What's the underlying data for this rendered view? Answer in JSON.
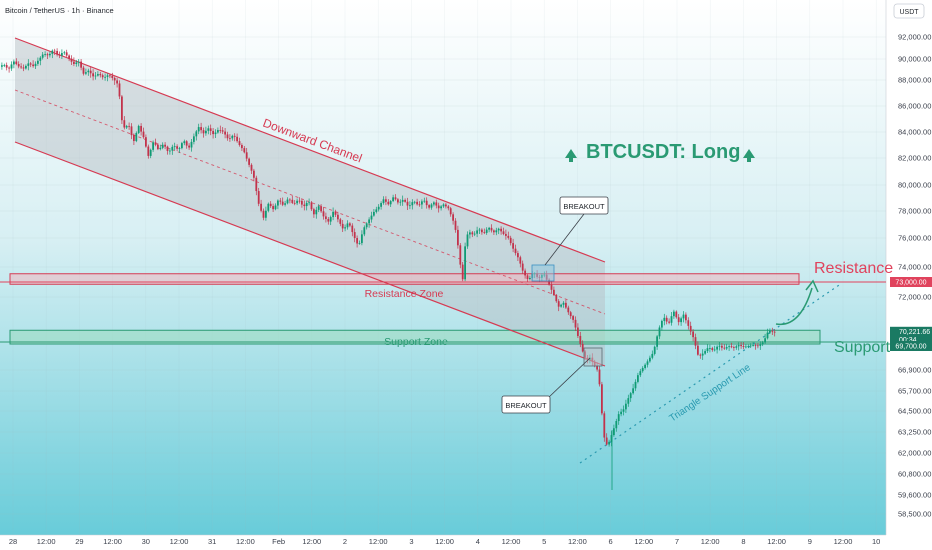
{
  "chart_data": {
    "type": "candlestick",
    "title": "Bitcoin / TetherUS · 1h · Binance",
    "currency": "USDT",
    "headline": "BTCUSDT: Long",
    "y_ticks": [
      58500,
      59600,
      60800,
      62000,
      63250,
      64500,
      65700,
      66900,
      69700,
      72000,
      74000,
      76000,
      78000,
      80000,
      82000,
      84000,
      86000,
      88000,
      90000,
      92000
    ],
    "y_tick_labels": [
      "58,500.00",
      "59,600.00",
      "60,800.00",
      "62,000.00",
      "63,250.00",
      "64,500.00",
      "65,700.00",
      "66,900.00",
      "69,700.00",
      "72,000.00",
      "74,000.00",
      "76,000.00",
      "78,000.00",
      "80,000.00",
      "82,000.00",
      "84,000.00",
      "86,000.00",
      "88,000.00",
      "90,000.00",
      "92,000.00"
    ],
    "x_tick_labels": [
      "28",
      "12:00",
      "29",
      "12:00",
      "30",
      "12:00",
      "31",
      "12:00",
      "Feb",
      "12:00",
      "2",
      "12:00",
      "3",
      "12:00",
      "4",
      "12:00",
      "5",
      "12:00",
      "6",
      "12:00",
      "7",
      "12:00",
      "8",
      "12:00",
      "9",
      "12:00",
      "10"
    ],
    "price_markers": {
      "resistance_value": "73,000.00",
      "current_value": "70,221.66",
      "countdown": "00:34",
      "support_value": "69,700.00"
    },
    "annotations": {
      "channel_label": "Downward Channel",
      "resistance_zone_label": "Resistance Zone",
      "support_zone_label": "Support Zone",
      "breakout_upper": "BREAKOUT",
      "breakout_lower": "BREAKOUT",
      "triangle_label": "Triangle Support Line",
      "resistance_label": "Resistance",
      "support_label": "Support"
    },
    "zones": {
      "resistance": [
        72850,
        73550
      ],
      "support": [
        69500,
        70300
      ]
    },
    "series": [
      {
        "path": [
          [
            0,
            89200
          ],
          [
            5,
            89500
          ],
          [
            10,
            89000
          ],
          [
            15,
            89800
          ],
          [
            20,
            89300
          ],
          [
            25,
            89100
          ],
          [
            30,
            89600
          ],
          [
            35,
            89300
          ],
          [
            40,
            89900
          ],
          [
            45,
            90500
          ],
          [
            50,
            90300
          ],
          [
            55,
            90900
          ],
          [
            60,
            90200
          ],
          [
            65,
            90700
          ],
          [
            70,
            90100
          ],
          [
            75,
            89500
          ],
          [
            80,
            89800
          ],
          [
            85,
            88600
          ],
          [
            90,
            88900
          ],
          [
            95,
            88300
          ],
          [
            100,
            88600
          ],
          [
            105,
            88200
          ],
          [
            110,
            88500
          ],
          [
            115,
            88100
          ],
          [
            120,
            87600
          ],
          [
            123,
            85000
          ],
          [
            126,
            84300
          ],
          [
            130,
            84600
          ],
          [
            135,
            83200
          ],
          [
            140,
            84500
          ],
          [
            145,
            83600
          ],
          [
            150,
            82100
          ],
          [
            155,
            83300
          ],
          [
            160,
            82600
          ],
          [
            165,
            83100
          ],
          [
            170,
            82400
          ],
          [
            175,
            83000
          ],
          [
            180,
            82600
          ],
          [
            185,
            83400
          ],
          [
            190,
            82700
          ],
          [
            195,
            83600
          ],
          [
            200,
            84400
          ],
          [
            205,
            83900
          ],
          [
            210,
            84300
          ],
          [
            215,
            83800
          ],
          [
            220,
            84200
          ],
          [
            225,
            84000
          ],
          [
            230,
            83400
          ],
          [
            235,
            83800
          ],
          [
            240,
            83100
          ],
          [
            245,
            82600
          ],
          [
            250,
            81600
          ],
          [
            255,
            80700
          ],
          [
            260,
            78600
          ],
          [
            265,
            77500
          ],
          [
            270,
            78600
          ],
          [
            275,
            78100
          ],
          [
            280,
            78900
          ],
          [
            285,
            78400
          ],
          [
            290,
            79000
          ],
          [
            295,
            78500
          ],
          [
            300,
            78900
          ],
          [
            305,
            78300
          ],
          [
            310,
            78800
          ],
          [
            315,
            77700
          ],
          [
            320,
            78400
          ],
          [
            325,
            77600
          ],
          [
            330,
            77200
          ],
          [
            335,
            78000
          ],
          [
            340,
            77300
          ],
          [
            345,
            76600
          ],
          [
            350,
            77200
          ],
          [
            355,
            76200
          ],
          [
            360,
            75400
          ],
          [
            365,
            76700
          ],
          [
            370,
            77300
          ],
          [
            375,
            77900
          ],
          [
            380,
            78300
          ],
          [
            385,
            78900
          ],
          [
            390,
            78500
          ],
          [
            395,
            79100
          ],
          [
            400,
            78600
          ],
          [
            405,
            78900
          ],
          [
            410,
            78300
          ],
          [
            415,
            78800
          ],
          [
            420,
            78400
          ],
          [
            425,
            78900
          ],
          [
            430,
            78200
          ],
          [
            435,
            78700
          ],
          [
            440,
            78200
          ],
          [
            445,
            78500
          ],
          [
            450,
            78200
          ],
          [
            455,
            77200
          ],
          [
            458,
            76300
          ],
          [
            461,
            74600
          ],
          [
            464,
            73000
          ],
          [
            467,
            75800
          ],
          [
            470,
            76500
          ],
          [
            475,
            76200
          ],
          [
            480,
            76700
          ],
          [
            485,
            76300
          ],
          [
            490,
            76800
          ],
          [
            495,
            76400
          ],
          [
            500,
            76700
          ],
          [
            505,
            76300
          ],
          [
            510,
            76000
          ],
          [
            515,
            75200
          ],
          [
            520,
            74600
          ],
          [
            525,
            73600
          ],
          [
            530,
            73100
          ],
          [
            535,
            73700
          ],
          [
            540,
            73200
          ],
          [
            545,
            73600
          ],
          [
            550,
            72900
          ],
          [
            555,
            72200
          ],
          [
            560,
            71500
          ],
          [
            565,
            71700
          ],
          [
            570,
            71200
          ],
          [
            575,
            70800
          ],
          [
            580,
            69900
          ],
          [
            585,
            68500
          ],
          [
            588,
            67800
          ],
          [
            591,
            68200
          ],
          [
            594,
            67700
          ],
          [
            597,
            67200
          ],
          [
            600,
            66800
          ],
          [
            603,
            64600
          ],
          [
            606,
            62800
          ],
          [
            609,
            62400
          ],
          [
            612,
            62900
          ],
          [
            615,
            63400
          ],
          [
            620,
            64300
          ],
          [
            625,
            64600
          ],
          [
            630,
            65300
          ],
          [
            635,
            65900
          ],
          [
            640,
            66700
          ],
          [
            645,
            67200
          ],
          [
            650,
            67900
          ],
          [
            655,
            68700
          ],
          [
            660,
            70300
          ],
          [
            665,
            71000
          ],
          [
            670,
            70600
          ],
          [
            675,
            71300
          ],
          [
            680,
            70700
          ],
          [
            685,
            71100
          ],
          [
            690,
            70500
          ],
          [
            695,
            69900
          ],
          [
            700,
            68200
          ],
          [
            705,
            68600
          ],
          [
            710,
            69200
          ],
          [
            715,
            68800
          ],
          [
            720,
            69400
          ],
          [
            725,
            69000
          ],
          [
            730,
            69300
          ],
          [
            735,
            69100
          ],
          [
            740,
            69400
          ],
          [
            745,
            69200
          ],
          [
            750,
            69300
          ],
          [
            755,
            69400
          ],
          [
            760,
            69300
          ],
          [
            765,
            69700
          ],
          [
            770,
            70300
          ],
          [
            775,
            70200
          ]
        ]
      }
    ]
  }
}
